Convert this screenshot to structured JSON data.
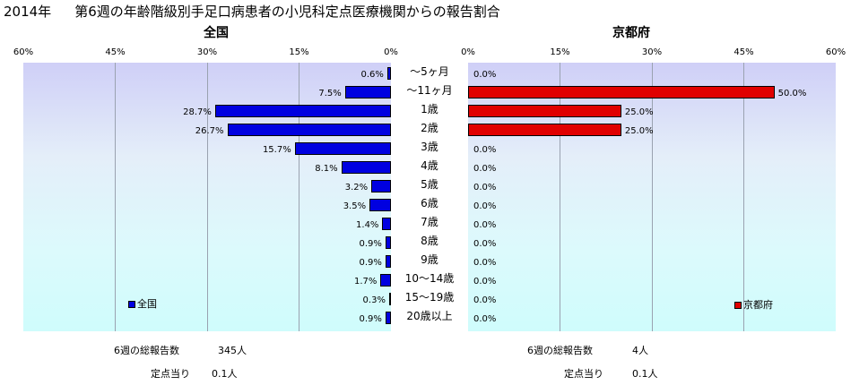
{
  "page": {
    "year": "2014年",
    "title": "第6週の年齢階級別手足口病患者の小児科定点医療機関からの報告割合"
  },
  "chart_data": {
    "type": "bar",
    "orientation": "horizontal",
    "categories": [
      "～5ヶ月",
      "～11ヶ月",
      "1歳",
      "2歳",
      "3歳",
      "4歳",
      "5歳",
      "6歳",
      "7歳",
      "8歳",
      "9歳",
      "10～14歳",
      "15～19歳",
      "20歳以上"
    ],
    "xlim": [
      0,
      60
    ],
    "xticks": [
      "0%",
      "15%",
      "30%",
      "45%",
      "60%"
    ],
    "grid": true,
    "panels": [
      {
        "title": "全国",
        "direction": "right-to-left",
        "series": [
          {
            "name": "全国",
            "color": "#0000e0",
            "values": [
              0.6,
              7.5,
              28.7,
              26.7,
              15.7,
              8.1,
              3.2,
              3.5,
              1.4,
              0.9,
              0.9,
              1.7,
              0.3,
              0.9
            ]
          }
        ],
        "labels": [
          "0.6%",
          "7.5%",
          "28.7%",
          "26.7%",
          "15.7%",
          "8.1%",
          "3.2%",
          "3.5%",
          "1.4%",
          "0.9%",
          "0.9%",
          "1.7%",
          "0.3%",
          "0.9%"
        ],
        "legend_position": "bottom-left"
      },
      {
        "title": "京都府",
        "direction": "left-to-right",
        "series": [
          {
            "name": "京都府",
            "color": "#e00000",
            "values": [
              0,
              50,
              25,
              25,
              0,
              0,
              0,
              0,
              0,
              0,
              0,
              0,
              0,
              0
            ]
          }
        ],
        "labels": [
          "0.0%",
          "50.0%",
          "25.0%",
          "25.0%",
          "0.0%",
          "0.0%",
          "0.0%",
          "0.0%",
          "0.0%",
          "0.0%",
          "0.0%",
          "0.0%",
          "0.0%",
          "0.0%"
        ],
        "legend_position": "bottom-right"
      }
    ]
  },
  "footer": {
    "left": {
      "total_label": "6週の総報告数",
      "total_value": "345人",
      "per_label": "定点当り",
      "per_value": "0.1人"
    },
    "right": {
      "total_label": "6週の総報告数",
      "total_value": "4人",
      "per_label": "定点当り",
      "per_value": "0.1人"
    }
  }
}
